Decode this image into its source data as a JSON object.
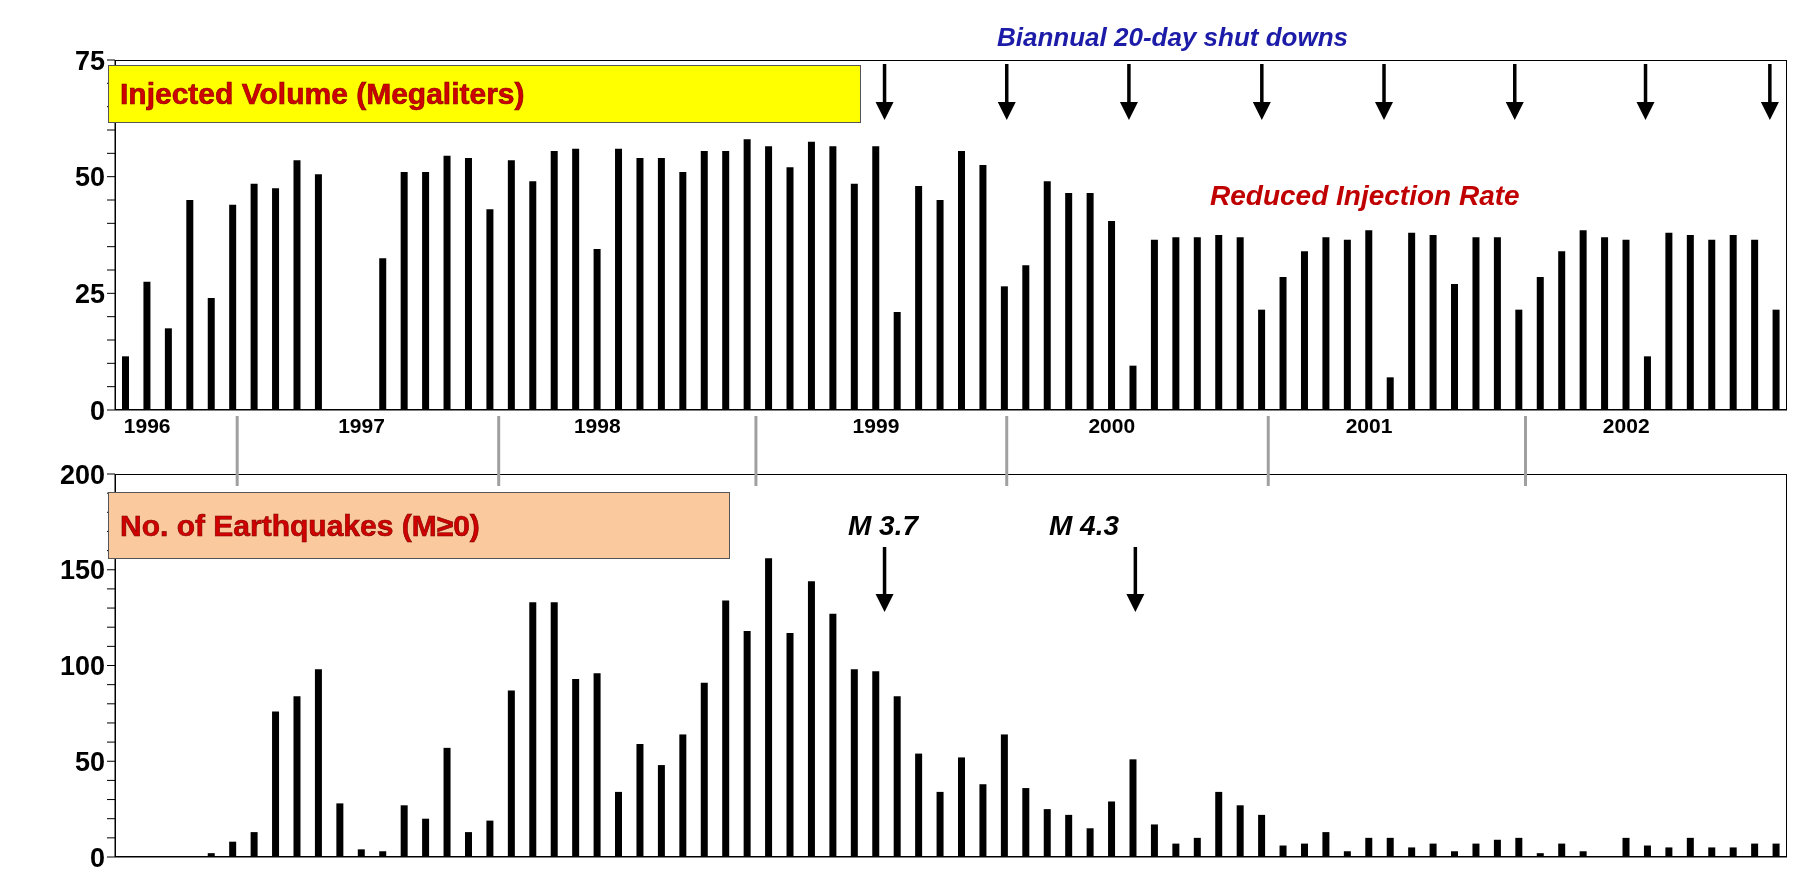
{
  "chart_data": [
    {
      "type": "bar",
      "title": "Injected Volume (Megaliters)",
      "color": "#000000",
      "categories": [
        null,
        "1996",
        null,
        null,
        null,
        null,
        null,
        null,
        null,
        null,
        null,
        "1997",
        null,
        null,
        null,
        null,
        null,
        null,
        null,
        null,
        null,
        null,
        "1998",
        null,
        null,
        null,
        null,
        null,
        null,
        null,
        null,
        null,
        null,
        null,
        null,
        "1999",
        null,
        null,
        null,
        null,
        null,
        null,
        null,
        null,
        null,
        null,
        "2000",
        null,
        null,
        null,
        null,
        null,
        null,
        null,
        null,
        null,
        null,
        null,
        "2001",
        null,
        null,
        null,
        null,
        null,
        null,
        null,
        null,
        null,
        null,
        null,
        "2002",
        null,
        null,
        null,
        null,
        null,
        null,
        null
      ],
      "values": [
        11.5,
        27.5,
        17.5,
        45,
        24,
        44,
        48.5,
        47.5,
        53.5,
        50.5,
        null,
        null,
        32.5,
        51,
        51,
        54.5,
        54,
        43,
        53.5,
        49,
        55.5,
        56,
        34.5,
        56,
        54,
        54,
        51,
        55.5,
        55.5,
        58,
        56.5,
        52,
        57.5,
        56.5,
        48.5,
        56.5,
        21,
        48,
        45,
        55.5,
        52.5,
        26.5,
        31,
        49,
        46.5,
        46.5,
        40.5,
        9.5,
        36.5,
        37,
        37,
        37.5,
        37,
        21.5,
        28.5,
        34,
        37,
        36.5,
        38.5,
        7,
        38,
        37.5,
        27,
        37,
        37,
        21.5,
        28.5,
        34,
        38.5,
        37,
        36.5,
        11.5,
        38,
        37.5,
        36.5,
        37.5,
        36.5,
        21.5
      ],
      "ylim": [
        0,
        75
      ],
      "yticks": [
        0,
        {
          "value": 5,
          "label": null
        },
        {
          "value": 10,
          "label": null
        },
        {
          "value": 15,
          "label": null
        },
        {
          "value": 20,
          "label": null
        },
        25,
        {
          "value": 30,
          "label": null
        },
        {
          "value": 35,
          "label": null
        },
        {
          "value": 40,
          "label": null
        },
        {
          "value": 45,
          "label": null
        },
        50,
        {
          "value": 55,
          "label": null
        },
        {
          "value": 60,
          "label": null
        },
        {
          "value": 65,
          "label": null
        },
        {
          "value": 70,
          "label": null
        },
        75
      ],
      "annotations": [
        "Biannual 20-day shut downs",
        "Reduced Injection Rate"
      ]
    },
    {
      "type": "bar",
      "title": "No. of Earthquakes (M≥0)",
      "color": "#000000",
      "tick_labels": "y",
      "categories": [
        null,
        null,
        null,
        null,
        null,
        null,
        null,
        null,
        null,
        null,
        null,
        null,
        null,
        null,
        null,
        null,
        null,
        null,
        null,
        null,
        null,
        null,
        null,
        null,
        null,
        null,
        null,
        null,
        null,
        null,
        null,
        null,
        null,
        null,
        null,
        null,
        null,
        null,
        null,
        null,
        null,
        null,
        null,
        null,
        null,
        null,
        null,
        null,
        null,
        null,
        null,
        null,
        null,
        null,
        null,
        null,
        null,
        null,
        null,
        null,
        null,
        null,
        null,
        null,
        null,
        null,
        null,
        null,
        null,
        null,
        null,
        null,
        null,
        null,
        null,
        null,
        null,
        null
      ],
      "values": [
        null,
        null,
        null,
        null,
        2,
        8,
        13,
        76,
        84,
        98,
        28,
        4,
        3,
        27,
        20,
        57,
        13,
        19,
        87,
        133,
        133,
        93,
        96,
        34,
        59,
        48,
        64,
        91,
        134,
        118,
        156,
        117,
        144,
        127,
        98,
        97,
        84,
        54,
        34,
        52,
        38,
        64,
        36,
        25,
        22,
        15,
        29,
        51,
        17,
        7,
        10,
        34,
        27,
        22,
        6,
        7,
        13,
        3,
        10,
        10,
        5,
        7,
        3,
        7,
        9,
        10,
        2,
        7,
        3,
        null,
        10,
        6,
        5,
        10,
        5,
        5,
        7,
        7
      ],
      "ylim": [
        0,
        200
      ],
      "yticks": [
        0,
        {
          "value": 10,
          "label": null
        },
        {
          "value": 20,
          "label": null
        },
        {
          "value": 30,
          "label": null
        },
        {
          "value": 40,
          "label": null
        },
        50,
        {
          "value": 60,
          "label": null
        },
        {
          "value": 70,
          "label": null
        },
        {
          "value": 80,
          "label": null
        },
        {
          "value": 90,
          "label": null
        },
        100,
        {
          "value": 110,
          "label": null
        },
        {
          "value": 120,
          "label": null
        },
        {
          "value": 130,
          "label": null
        },
        {
          "value": 140,
          "label": null
        },
        150,
        {
          "value": 160,
          "label": null
        },
        {
          "value": 170,
          "label": null
        },
        {
          "value": 180,
          "label": null
        },
        {
          "value": 190,
          "label": null
        },
        200
      ],
      "annotations": [
        "M 3.7",
        "M 4.3"
      ]
    }
  ]
}
